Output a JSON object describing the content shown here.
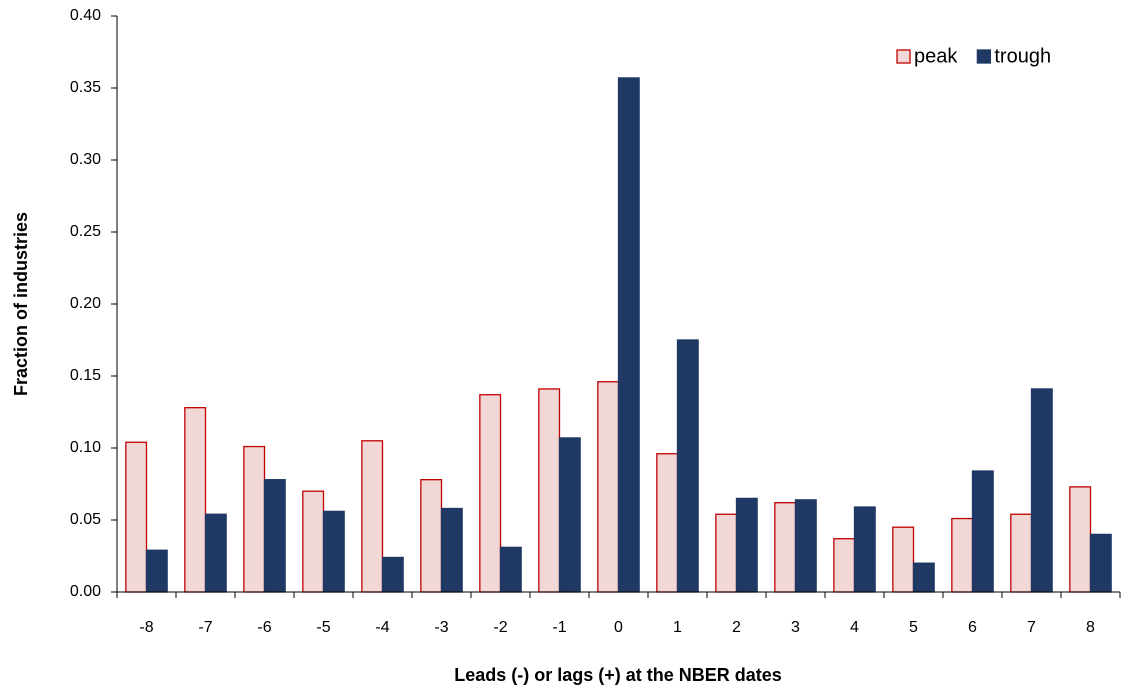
{
  "chart_data": {
    "type": "bar",
    "x_label": "Leads (-) or lags (+)  at the NBER dates",
    "y_label": "Fraction of industries",
    "categories": [
      "-8",
      "-7",
      "-6",
      "-5",
      "-4",
      "-3",
      "-2",
      "-1",
      "0",
      "1",
      "2",
      "3",
      "4",
      "5",
      "6",
      "7",
      "8"
    ],
    "series": [
      {
        "name": "peak",
        "color": "#f2d7d7",
        "edge_color": "#c00000",
        "values": [
          0.104,
          0.128,
          0.101,
          0.07,
          0.105,
          0.078,
          0.137,
          0.141,
          0.146,
          0.096,
          0.054,
          0.062,
          0.037,
          0.045,
          0.051,
          0.054,
          0.073
        ]
      },
      {
        "name": "trough",
        "color": "#1f3864",
        "edge_color": "#1f3864",
        "values": [
          0.029,
          0.054,
          0.078,
          0.056,
          0.024,
          0.058,
          0.031,
          0.107,
          0.357,
          0.175,
          0.065,
          0.064,
          0.059,
          0.02,
          0.084,
          0.141,
          0.04
        ]
      }
    ],
    "ylim": [
      0,
      0.4
    ],
    "yticks": [
      {
        "value": 0,
        "label": "0.00"
      },
      {
        "value": 0.05,
        "label": "0.05"
      },
      {
        "value": 0.1,
        "label": "0.10"
      },
      {
        "value": 0.15,
        "label": "0.15"
      },
      {
        "value": 0.2,
        "label": "0.20"
      },
      {
        "value": 0.25,
        "label": "0.25"
      },
      {
        "value": 0.3,
        "label": "0.30"
      },
      {
        "value": 0.35,
        "label": "0.35"
      },
      {
        "value": 0.4,
        "label": "0.40"
      }
    ],
    "legend": "upper right"
  }
}
